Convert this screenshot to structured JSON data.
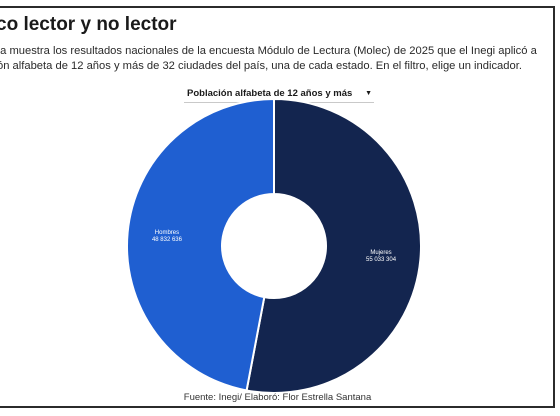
{
  "title": "co lector y no lector",
  "subtitle_lines": [
    "ta muestra los resultados nacionales de la encuesta Módulo de Lectura (Molec) de 2025 que el Inegi aplicó a",
    "ón alfabeta de 12 años y más de 32 ciudades del país, una de cada estado. En el filtro, elige un indicador."
  ],
  "filter": {
    "selected": "Población alfabeta de 12 años y más",
    "icon": "chevron-down-icon"
  },
  "source": "Fuente: Inegi/ Elaboró: Flor Estrella Santana",
  "chart_data": {
    "type": "pie",
    "variant": "donut",
    "slices": [
      {
        "name": "Mujeres",
        "value": 55033304,
        "label": "55 033 304",
        "color": "#13254f"
      },
      {
        "name": "Hombres",
        "value": 48832636,
        "label": "48 832 636",
        "color": "#1f5fd1"
      }
    ]
  }
}
